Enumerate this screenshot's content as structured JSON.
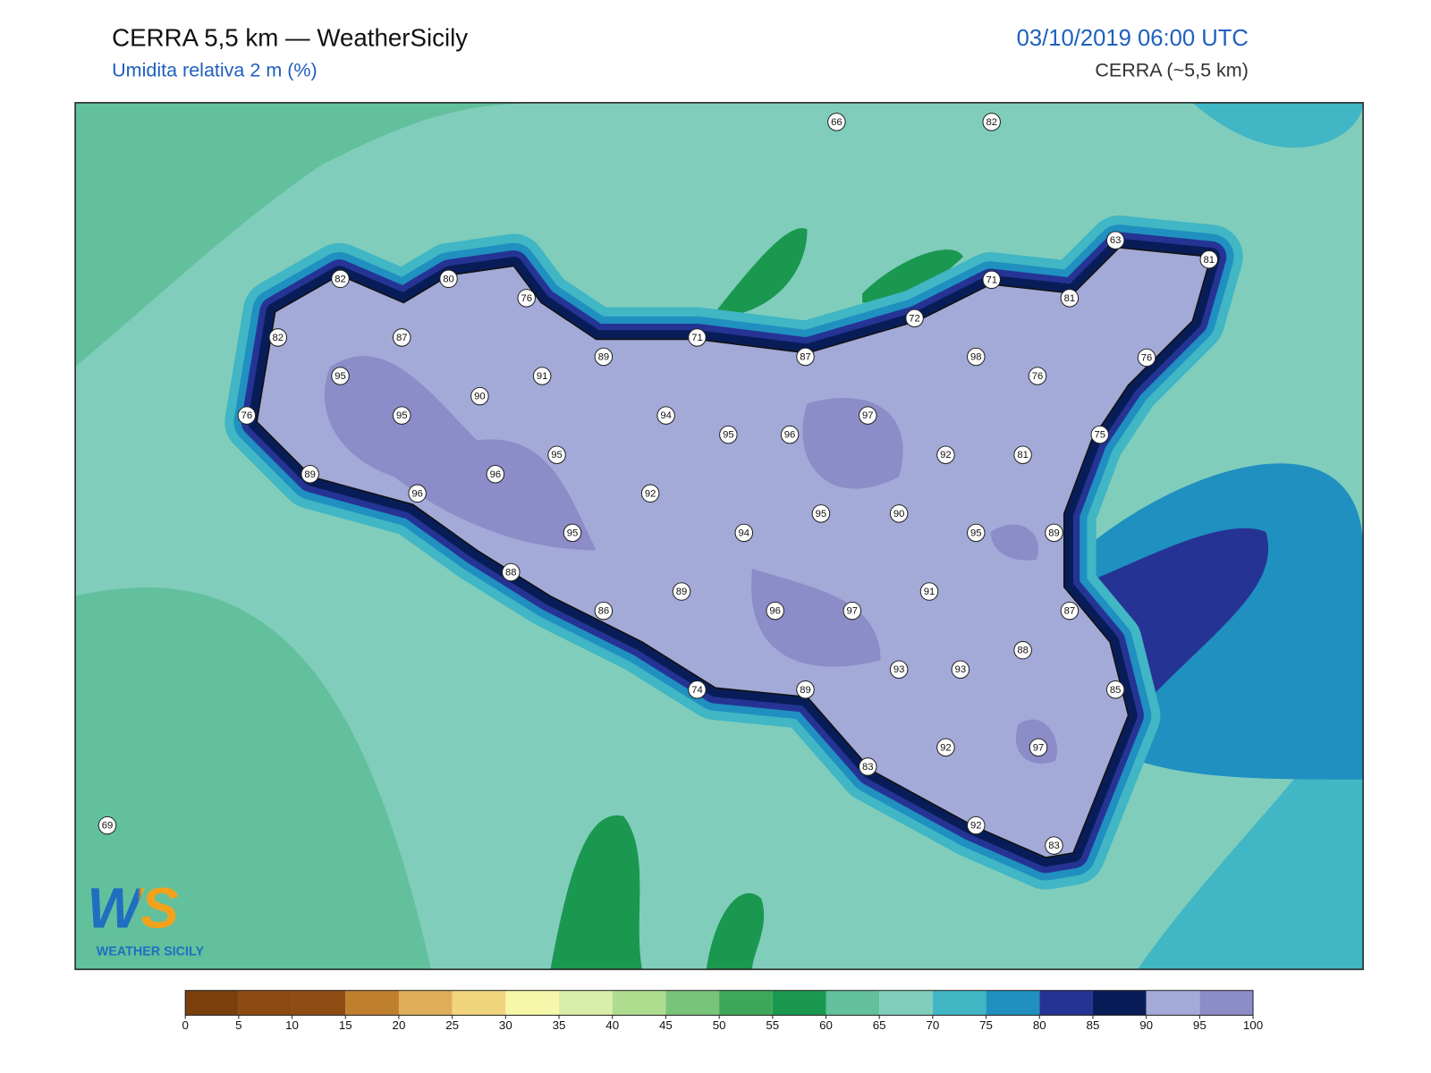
{
  "header": {
    "title": "CERRA 5,5 km — WeatherSicily",
    "subtitle": "Umidita relativa 2 m (%)",
    "datetime": "03/10/2019 06:00 UTC",
    "model": "CERRA (~5,5 km)"
  },
  "stations": [
    66,
    82,
    63,
    81,
    82,
    80,
    76,
    71,
    81,
    72,
    71,
    87,
    98,
    76,
    82,
    87,
    89,
    95,
    91,
    76,
    90,
    95,
    94,
    97,
    76,
    95,
    96,
    75,
    95,
    92,
    81,
    89,
    96,
    96,
    92,
    95,
    90,
    95,
    94,
    95,
    89,
    88,
    89,
    91,
    86,
    96,
    97,
    87,
    88,
    93,
    93,
    74,
    89,
    85,
    92,
    97,
    83,
    92,
    83,
    69
  ],
  "colorbar": {
    "ticks": [
      0,
      5,
      10,
      15,
      20,
      25,
      30,
      35,
      40,
      45,
      50,
      55,
      60,
      65,
      70,
      75,
      80,
      85,
      90,
      95,
      100
    ],
    "colors": [
      "#7b3f0c",
      "#8b4a12",
      "#8e4c13",
      "#c07f2d",
      "#dfae5a",
      "#f0d57e",
      "#f7f7aa",
      "#d9eeaa",
      "#aedd90",
      "#78c47a",
      "#3ea85a",
      "#1b9850",
      "#62c09d",
      "#80cdbc",
      "#41b6c4",
      "#1f90c0",
      "#253494",
      "#081d58",
      "#a3aad8",
      "#8c8cc8"
    ]
  },
  "logo": {
    "mark": "WS",
    "text": "WEATHER SICILY"
  }
}
